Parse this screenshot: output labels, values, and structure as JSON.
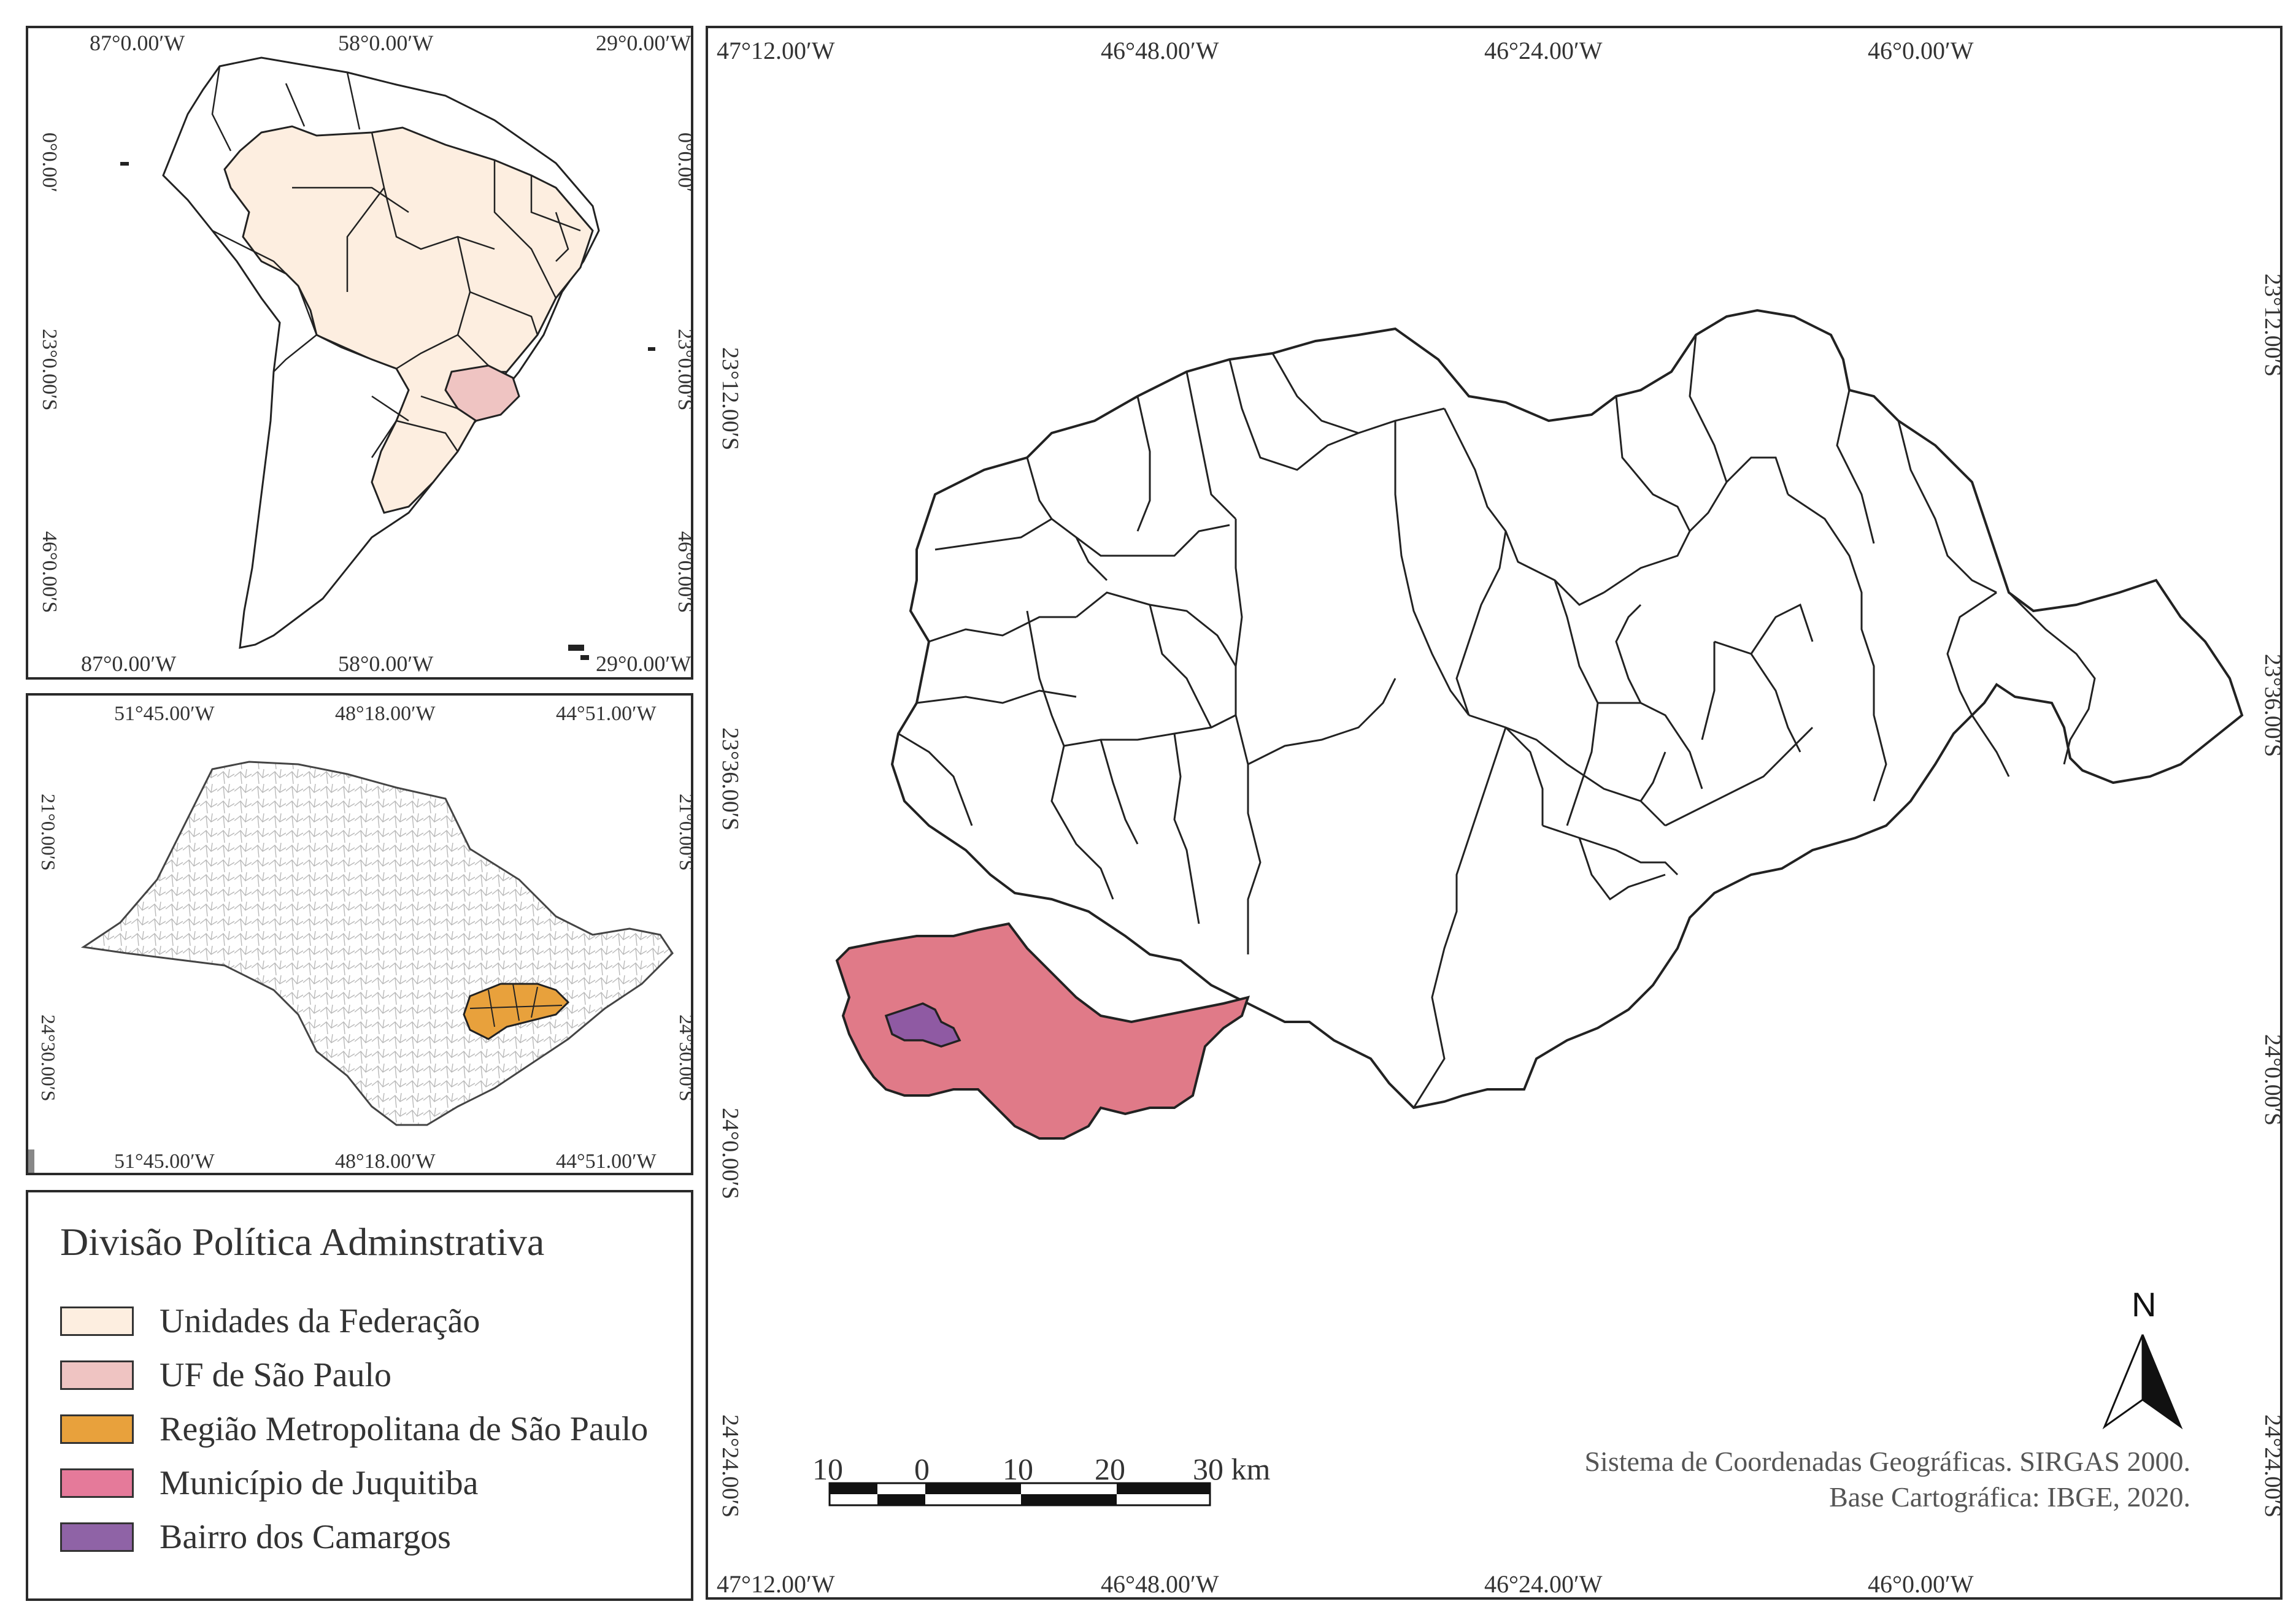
{
  "inset_south_america": {
    "coords_top": [
      "87°0.00′W",
      "58°0.00′W",
      "29°0.00′W"
    ],
    "coords_bottom": [
      "87°0.00′W",
      "58°0.00′W",
      "29°0.00′W"
    ],
    "coords_left": [
      "0°0.00′",
      "23°0.00′S",
      "46°0.00′S"
    ],
    "coords_right": [
      "0°0.00′",
      "23°0.00′S",
      "46°0.00′S"
    ]
  },
  "inset_sao_paulo": {
    "coords_top": [
      "51°45.00′W",
      "48°18.00′W",
      "44°51.00′W"
    ],
    "coords_bottom": [
      "51°45.00′W",
      "48°18.00′W",
      "44°51.00′W"
    ],
    "coords_left": [
      "21°0.00′S",
      "24°30.00′S"
    ],
    "coords_right": [
      "21°0.00′S",
      "24°30.00′S"
    ]
  },
  "legend": {
    "title": "Divisão Política Adminstrativa",
    "items": [
      {
        "label": "Unidades da Federação",
        "color": "#fdeee0"
      },
      {
        "label": "UF de São Paulo",
        "color": "#efc4c2"
      },
      {
        "label": "Região Metropolitana de São Paulo",
        "color": "#e8a13c"
      },
      {
        "label": "Município de Juquitiba",
        "color": "#e57a9a"
      },
      {
        "label": "Bairro dos Camargos",
        "color": "#8f63a6"
      }
    ]
  },
  "main_map": {
    "coords_top": [
      "47°12.00′W",
      "46°48.00′W",
      "46°24.00′W",
      "46°0.00′W"
    ],
    "coords_bottom": [
      "47°12.00′W",
      "46°48.00′W",
      "46°24.00′W",
      "46°0.00′W"
    ],
    "coords_left": [
      "23°12.00′S",
      "23°36.00′S",
      "24°0.00′S",
      "24°24.00′S"
    ],
    "coords_right": [
      "23°12.00′S",
      "23°36.00′S",
      "24°0.00′S",
      "24°24.00′S"
    ],
    "municipality_color": "#e07a88",
    "neighborhood_color": "#8f5aa3"
  },
  "scale_bar": {
    "labels": [
      "10",
      "0",
      "10",
      "20",
      "30 km"
    ]
  },
  "north_arrow": {
    "label": "N"
  },
  "credits": {
    "line1": "Sistema de Coordenadas Geográficas. SIRGAS 2000.",
    "line2": "Base Cartográfica: IBGE, 2020."
  }
}
